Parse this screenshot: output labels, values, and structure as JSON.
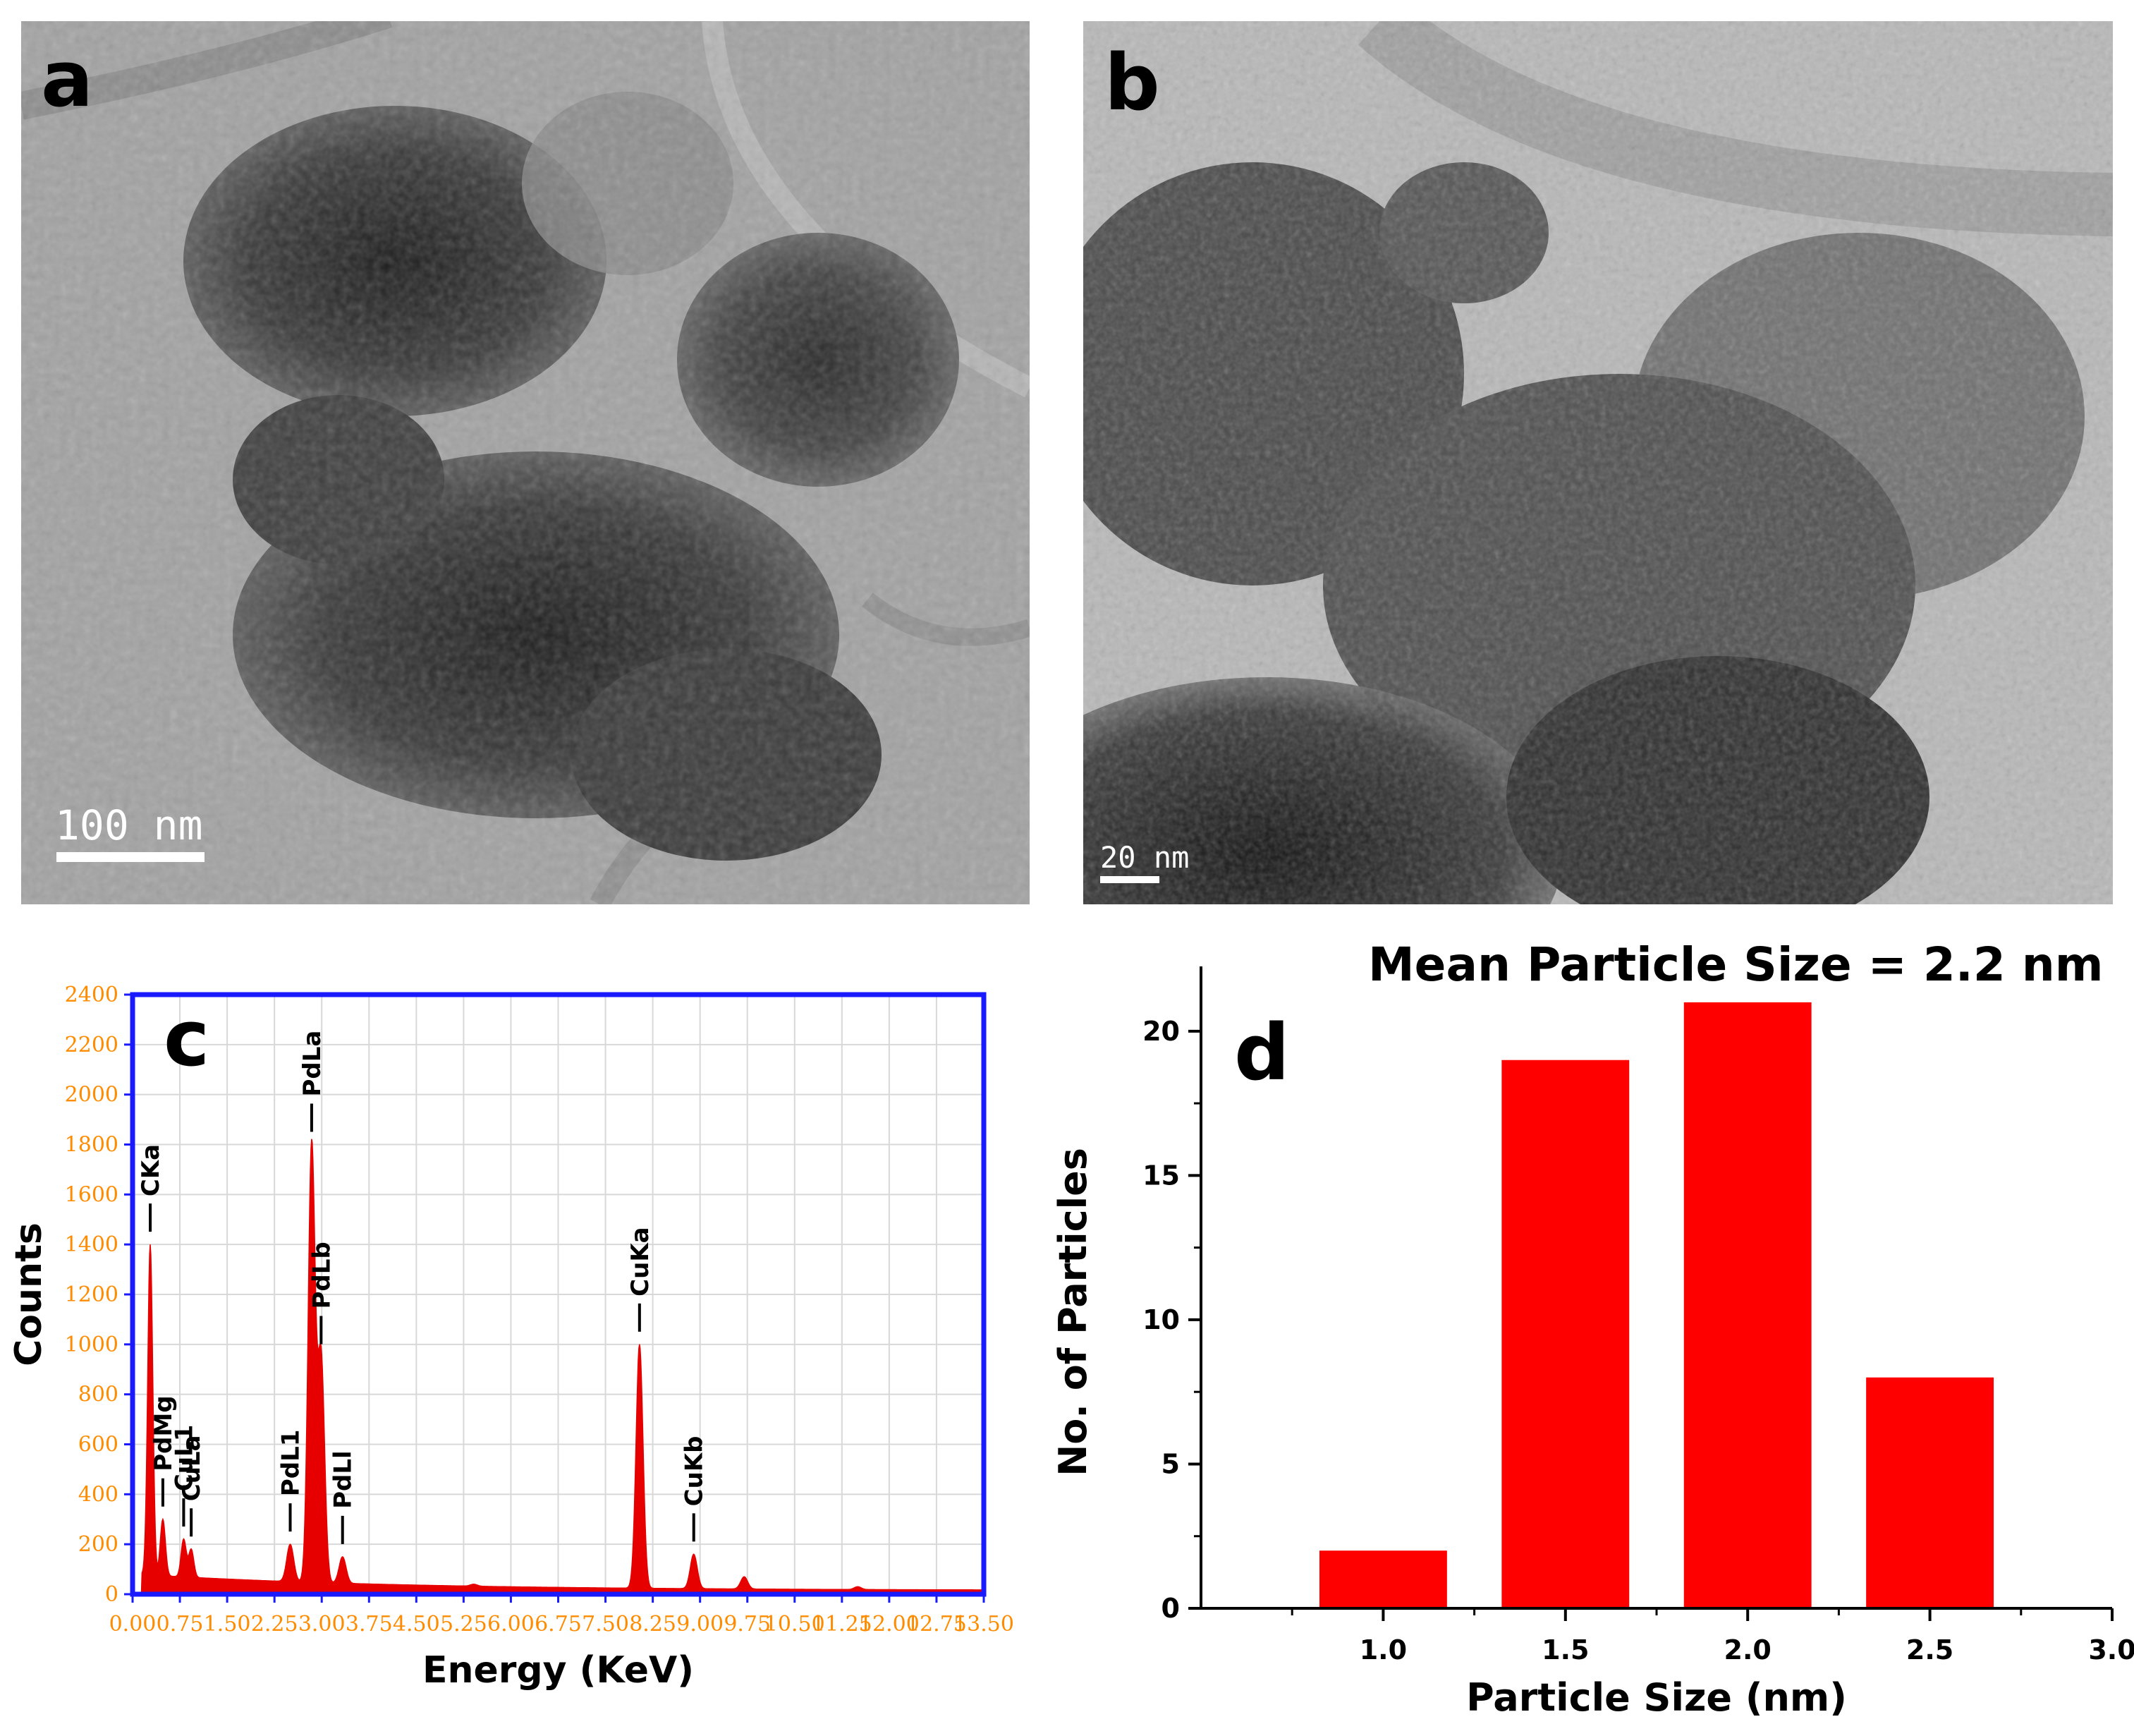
{
  "panels": {
    "a": {
      "letter": "a",
      "scale_bar": "100 nm"
    },
    "b": {
      "letter": "b",
      "scale_bar": "20 nm"
    },
    "c": {
      "letter": "c"
    },
    "d": {
      "letter": "d"
    }
  },
  "colors": {
    "spectrum_fill": "#e60000",
    "eds_frame": "#1a1aff",
    "eds_tick_labels": "#ff8c00",
    "histogram_bars": "#ff0000"
  },
  "chart_data": [
    {
      "type": "area",
      "panel": "c",
      "xlabel": "Energy (KeV)",
      "ylabel": "Counts",
      "xlim": [
        0,
        13.5
      ],
      "ylim": [
        0,
        2400
      ],
      "x_tick_labels": [
        "0.00",
        "0.75",
        "1.50",
        "2.25",
        "3.00",
        "3.75",
        "4.50",
        "5.25",
        "6.00",
        "6.75",
        "7.50",
        "8.25",
        "9.00",
        "9.75",
        "10.50",
        "11.25",
        "12.00",
        "12.75",
        "13.50"
      ],
      "y_tick_labels": [
        "0",
        "200",
        "400",
        "600",
        "800",
        "1000",
        "1200",
        "1400",
        "1600",
        "1800",
        "2000",
        "2200",
        "2400"
      ],
      "grid": true,
      "peaks": [
        {
          "label": "CKa",
          "energy": 0.28,
          "counts": 1400
        },
        {
          "label": "PdMg",
          "energy": 0.48,
          "counts": 300
        },
        {
          "label": "CuL1",
          "energy": 0.81,
          "counts": 220
        },
        {
          "label": "CuLa",
          "energy": 0.93,
          "counts": 180
        },
        {
          "label": "PdL1",
          "energy": 2.5,
          "counts": 200
        },
        {
          "label": "PdLa",
          "energy": 2.84,
          "counts": 1800
        },
        {
          "label": "PdLb",
          "energy": 2.99,
          "counts": 950
        },
        {
          "label": "PdLl",
          "energy": 3.33,
          "counts": 150
        },
        {
          "label": "CuKa",
          "energy": 8.04,
          "counts": 1000
        },
        {
          "label": "CuKb",
          "energy": 8.9,
          "counts": 160
        }
      ],
      "minor_peaks": [
        {
          "energy": 5.41,
          "counts": 40
        },
        {
          "energy": 9.7,
          "counts": 70
        },
        {
          "energy": 11.5,
          "counts": 30
        }
      ]
    },
    {
      "type": "bar",
      "panel": "d",
      "title": "Mean Particle Size = 2.2 nm",
      "xlabel": "Particle Size (nm)",
      "ylabel": "No. of Particles",
      "x": [
        1.0,
        1.5,
        2.0,
        2.5
      ],
      "values": [
        2,
        19,
        21,
        8
      ],
      "bar_width": 0.35,
      "xlim": [
        0.5,
        3.0
      ],
      "ylim": [
        0,
        22
      ],
      "x_tick_labels": [
        "1.0",
        "1.5",
        "2.0",
        "2.5",
        "3.0"
      ],
      "y_tick_labels": [
        "0",
        "5",
        "10",
        "15",
        "20"
      ]
    }
  ]
}
